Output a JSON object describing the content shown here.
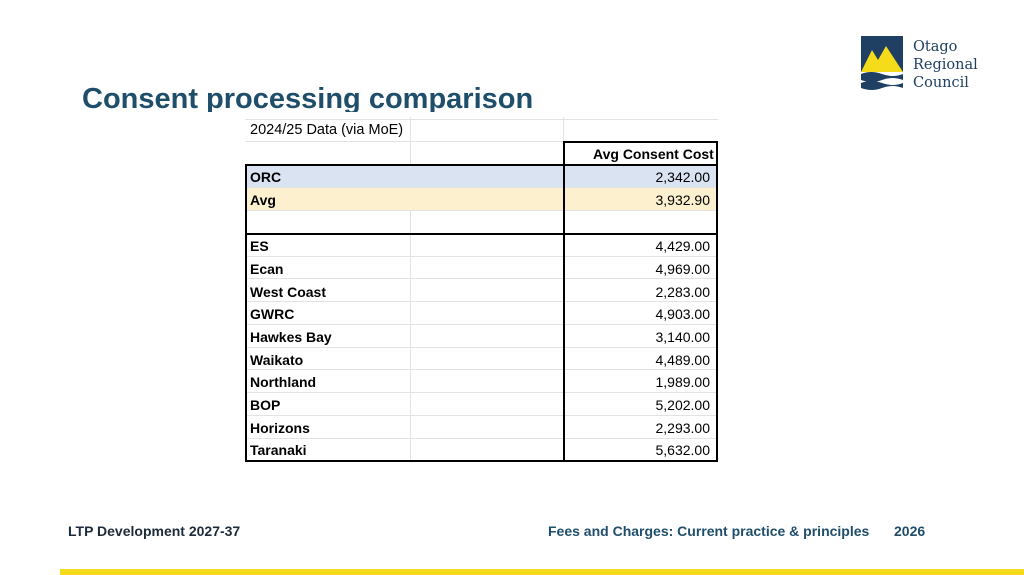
{
  "slide": {
    "title": "Consent processing comparison",
    "footer_left": "LTP Development 2027-37",
    "footer_right": "Fees and Charges: Current practice & principles",
    "footer_year": "2026"
  },
  "logo": {
    "lines": [
      "Otago",
      "Regional",
      "Council"
    ],
    "colors": {
      "navy": "#1f3f63",
      "yellow": "#f5dc1b"
    }
  },
  "table": {
    "source_label": "2024/25 Data (via MoE)",
    "column_header": "Avg Consent Cost",
    "highlight_rows": [
      {
        "label": "ORC",
        "value": "2,342.00"
      },
      {
        "label": "Avg",
        "value": "3,932.90"
      }
    ],
    "rows": [
      {
        "label": "ES",
        "value": "4,429.00"
      },
      {
        "label": "Ecan",
        "value": "4,969.00"
      },
      {
        "label": "West Coast",
        "value": "2,283.00"
      },
      {
        "label": "GWRC",
        "value": "4,903.00"
      },
      {
        "label": "Hawkes Bay",
        "value": "3,140.00"
      },
      {
        "label": "Waikato",
        "value": "4,489.00"
      },
      {
        "label": "Northland",
        "value": "1,989.00"
      },
      {
        "label": "BOP",
        "value": "5,202.00"
      },
      {
        "label": "Horizons",
        "value": "2,293.00"
      },
      {
        "label": "Taranaki",
        "value": "5,632.00"
      }
    ]
  },
  "colors": {
    "title": "#1f4e6b",
    "row_highlight_blue": "#dae3f2",
    "row_highlight_yellow": "#fdf0cf",
    "accent_bar": "#f5dc1b"
  }
}
